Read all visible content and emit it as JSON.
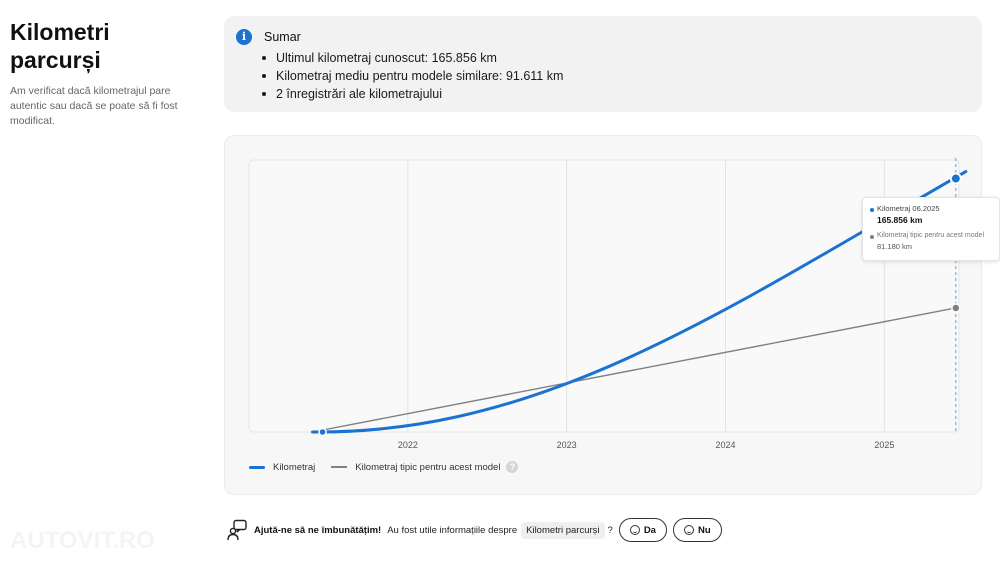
{
  "header": {
    "title_line1": "Kilometri",
    "title_line2": "parcurși",
    "description": "Am verificat dacă kilometrajul pare autentic sau dacă se poate să fi fost modificat."
  },
  "summary": {
    "icon": "info-icon",
    "title": "Sumar",
    "items": [
      "Ultimul kilometraj cunoscut: 165.856 km",
      "Kilometraj mediu pentru modele similare: 91.611 km",
      "2 înregistrări ale kilometrajului"
    ]
  },
  "chart_data": {
    "type": "line",
    "x_tick_labels": [
      "2022",
      "2023",
      "2024",
      "2025"
    ],
    "grid": true,
    "legend_position": "bottom-left",
    "series": [
      {
        "name": "Kilometraj",
        "color": "#1a73d1",
        "points": [
          {
            "x": 2021.4,
            "y": 0
          },
          {
            "x": 2025.45,
            "y": 165856
          }
        ]
      },
      {
        "name": "Kilometraj tipic pentru acest model",
        "color": "#808080",
        "points": [
          {
            "x": 2021.4,
            "y": 0
          },
          {
            "x": 2025.45,
            "y": 81180
          }
        ]
      }
    ],
    "tooltip": {
      "label_primary": "Kilometraj 06.2025",
      "value_primary": "165.856 km",
      "label_secondary": "Kilometraj tipic pentru acest model",
      "value_secondary": "81.180 km"
    }
  },
  "legend": {
    "item1": "Kilometraj",
    "item2": "Kilometraj tipic pentru acest model",
    "help": "?"
  },
  "feedback": {
    "icon": "chat-person-icon",
    "prompt_bold": "Ajută-ne să ne îmbunătățim!",
    "question": "Au fost utile informațiile despre",
    "topic_chip": "Kilometri parcurși",
    "question_mark": "?",
    "yes_label": "Da",
    "no_label": "Nu"
  },
  "watermark": "AUTOVIT.RO",
  "colors": {
    "accent": "#1a73d1",
    "typical": "#808080",
    "summary_bg": "#f2f2f2",
    "card_bg": "#f7f7f7"
  }
}
